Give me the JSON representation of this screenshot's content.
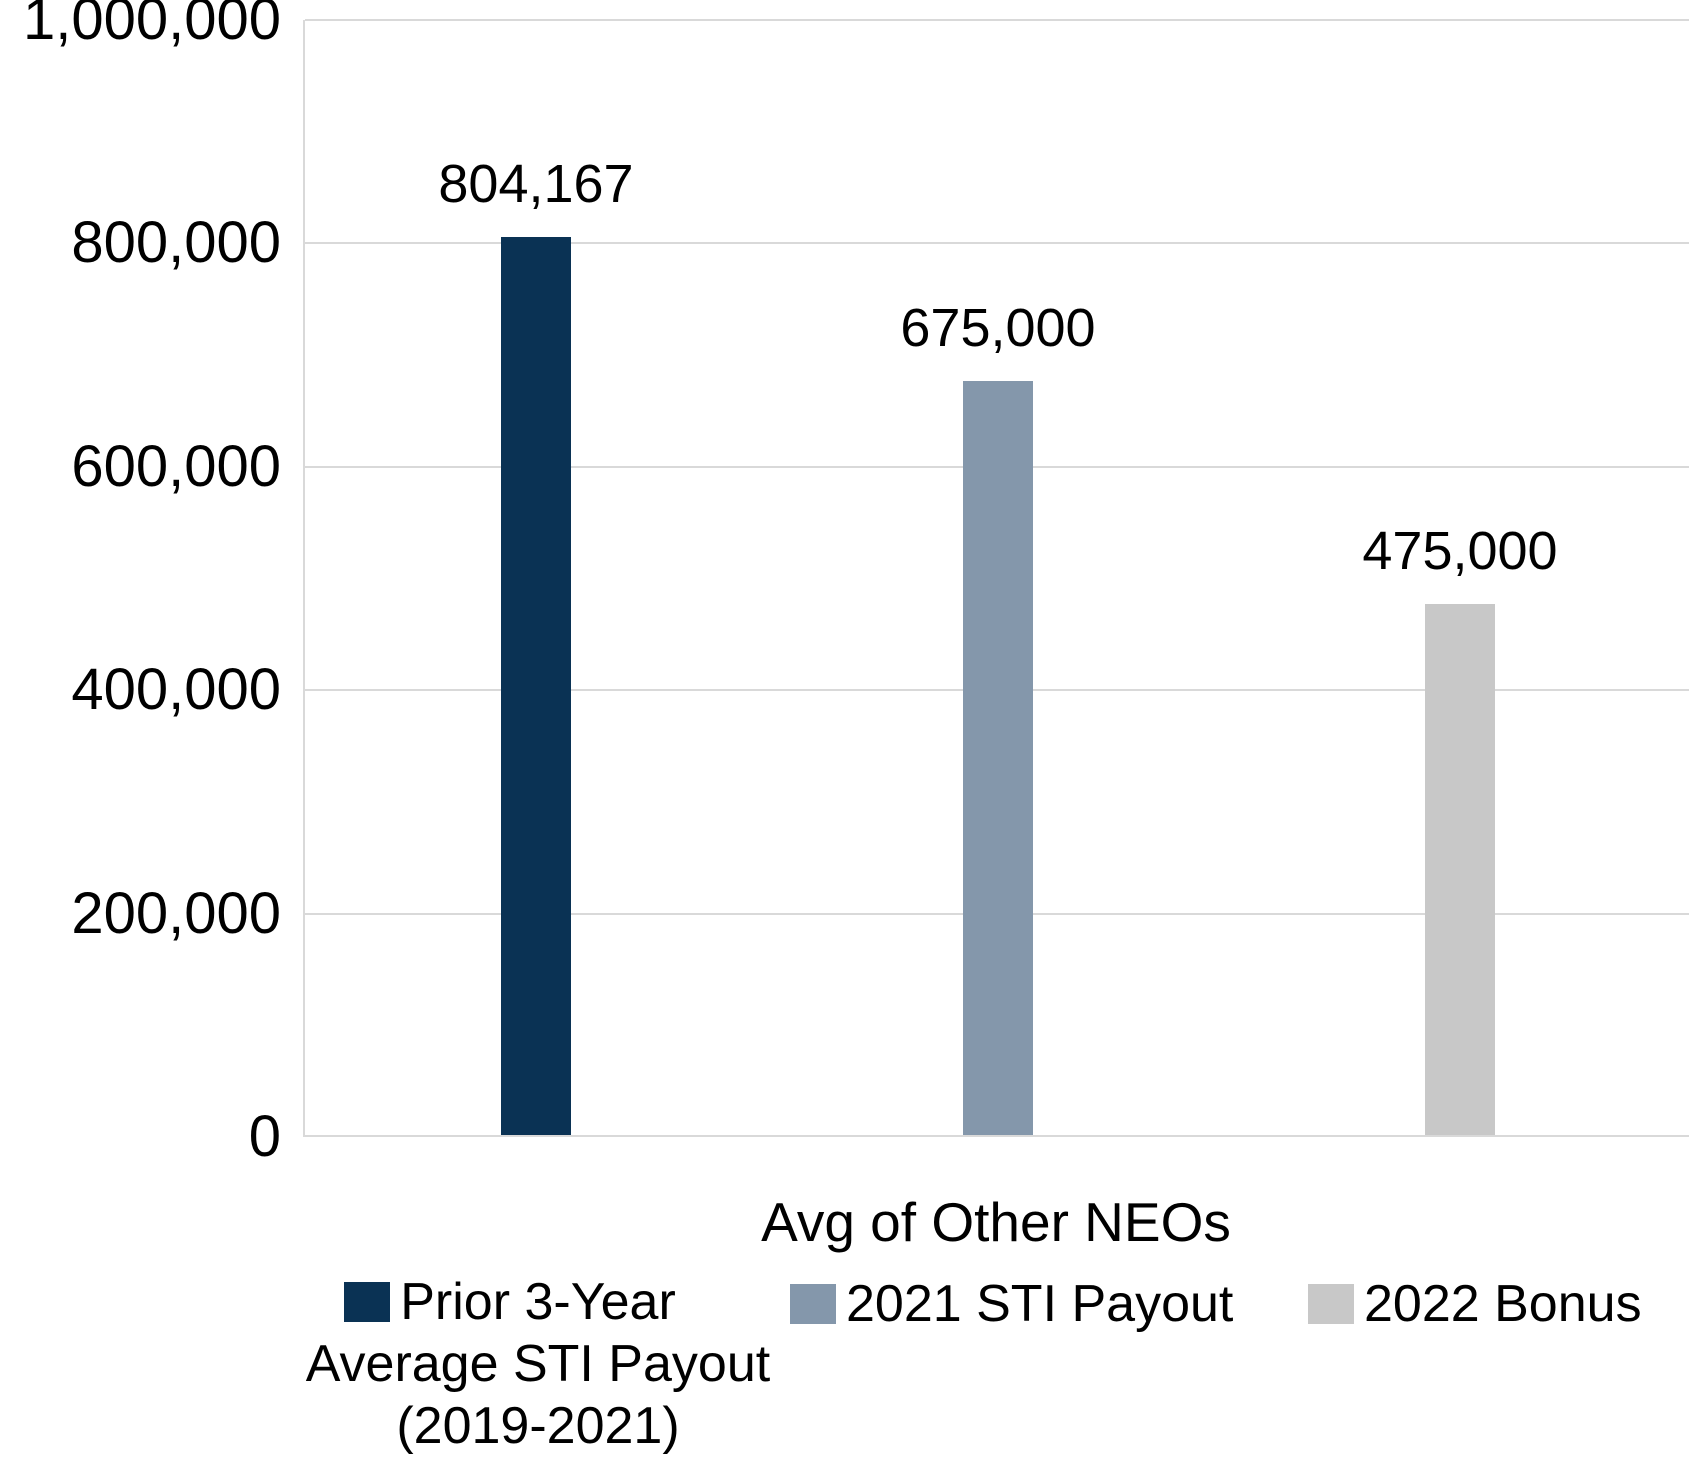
{
  "chart_data": {
    "type": "bar",
    "title": "",
    "categories": [
      "Avg of Other NEOs"
    ],
    "series": [
      {
        "name": "Prior 3-Year Average STI Payout (2019-2021)",
        "legend_lines": [
          "Prior 3-Year",
          "Average STI Payout",
          "(2019-2021)"
        ],
        "values": [
          804167
        ],
        "data_label": "804,167",
        "color": "#0A3254"
      },
      {
        "name": "2021 STI Payout",
        "legend_lines": [
          "2021 STI Payout"
        ],
        "values": [
          675000
        ],
        "data_label": "675,000",
        "color": "#8497AB"
      },
      {
        "name": "2022 Bonus",
        "legend_lines": [
          "2022 Bonus"
        ],
        "values": [
          475000
        ],
        "data_label": "475,000",
        "color": "#C8C8C8"
      }
    ],
    "xlabel": "Avg of Other NEOs",
    "ylabel": "",
    "ylim": [
      0,
      1000000
    ],
    "yticks": [
      {
        "value": 0,
        "label": "0"
      },
      {
        "value": 200000,
        "label": "200,000"
      },
      {
        "value": 400000,
        "label": "400,000"
      },
      {
        "value": 600000,
        "label": "600,000"
      },
      {
        "value": 800000,
        "label": "800,000"
      },
      {
        "value": 1000000,
        "label": "1,000,000"
      }
    ],
    "grid": true,
    "legend_position": "bottom",
    "colors": {
      "gridline": "#D9D9D9",
      "label_text": "#000000"
    }
  }
}
